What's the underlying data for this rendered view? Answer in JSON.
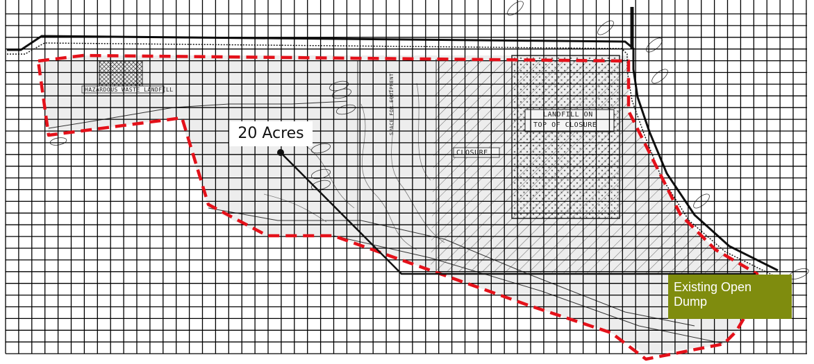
{
  "callouts": {
    "area": "20 Acres",
    "dump": "Existing Open Dump"
  },
  "plan_labels": {
    "hazardous": "HAZARDOUS WASTE LANDFILL",
    "closure": "CLOSURE",
    "landfill_1": "LANDFILL ON",
    "landfill_2": "TOP OF CLOSURE",
    "equipment": "SPACE FOR EQUIPMENT"
  },
  "colors": {
    "boundary": "#e4111a",
    "dump_fill": "#7f8c0e",
    "grid": "#000000",
    "site_fill": "#ededed"
  }
}
